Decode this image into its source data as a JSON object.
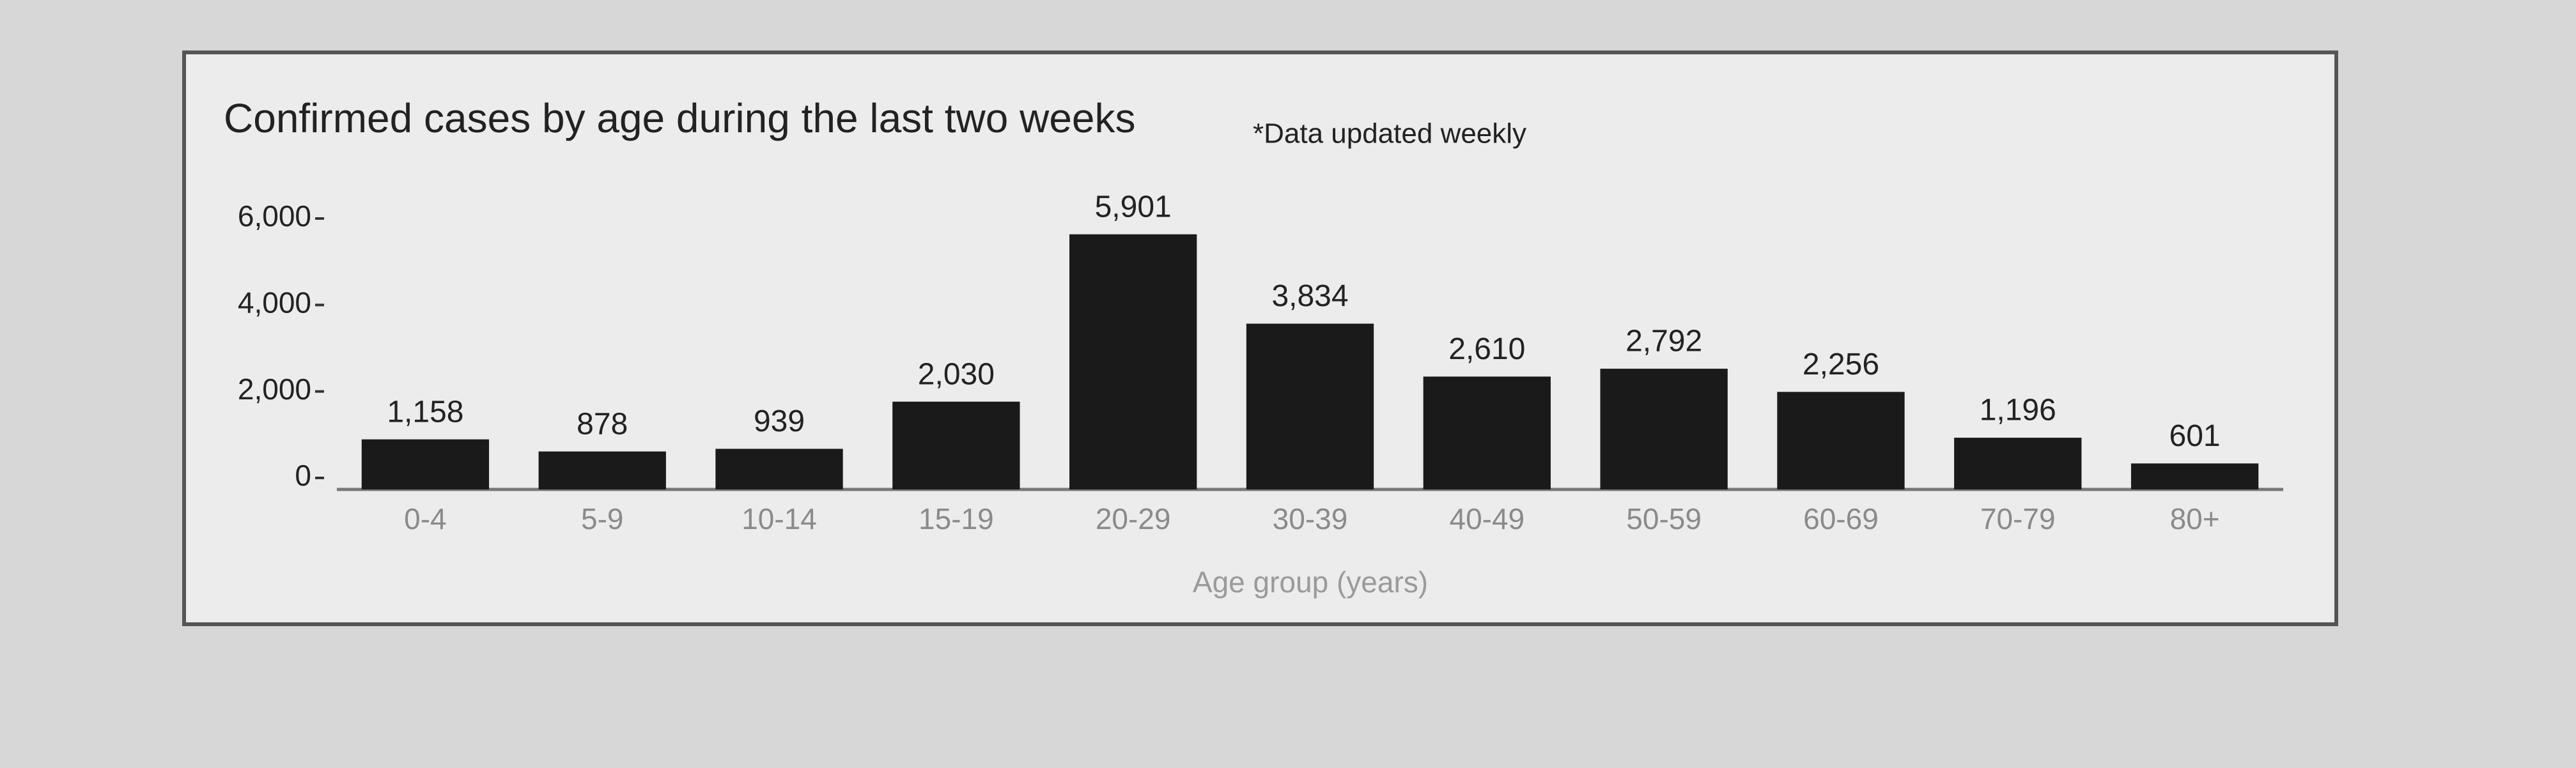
{
  "chart_data": {
    "type": "bar",
    "title": "Confirmed cases by age during the last two weeks",
    "subtitle": "*Data updated weekly",
    "x_label": "Age group (years)",
    "categories": [
      "0-4",
      "5-9",
      "10-14",
      "15-19",
      "20-29",
      "30-39",
      "40-49",
      "50-59",
      "60-69",
      "70-79",
      "80+"
    ],
    "values": [
      1158,
      878,
      939,
      2030,
      5901,
      3834,
      2610,
      2792,
      2256,
      1196,
      601
    ],
    "value_labels": [
      "1,158",
      "878",
      "939",
      "2,030",
      "5,901",
      "3,834",
      "2,610",
      "2,792",
      "2,256",
      "1,196",
      "601"
    ],
    "color": "#1a1a1a",
    "ylim": [
      0,
      6000
    ],
    "yticks": [
      {
        "value": 0,
        "label": "0"
      },
      {
        "value": 2000,
        "label": "2,000"
      },
      {
        "value": 4000,
        "label": "4,000"
      },
      {
        "value": 6000,
        "label": "6,000"
      }
    ]
  }
}
